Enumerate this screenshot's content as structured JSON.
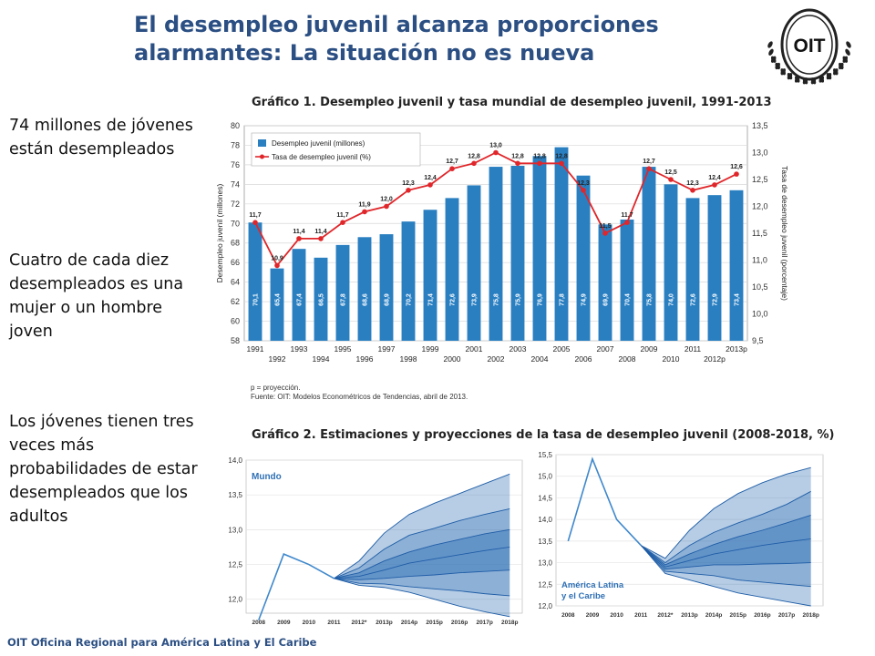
{
  "slide": {
    "title": "El desempleo juvenil alcanza proporciones alarmantes: La situación no es nueva",
    "logo_text": "OIT",
    "side_texts": [
      "74 millones de jóvenes están desempleados",
      "Cuatro de cada diez desempleados es una mujer o un hombre joven",
      "Los jóvenes tienen tres veces más probabilidades de estar desempleados que los adultos"
    ],
    "footer": "OIT Oficina Regional para América Latina y El Caribe",
    "colors": {
      "title": "#2b4f83",
      "bar": "#2a7fc1",
      "line": "#e0262a",
      "fan": "#2f70b5"
    }
  },
  "chart_data": [
    {
      "type": "bar",
      "title": "Gráfico 1. Desempleo juvenil y tasa mundial de desempleo juvenil, 1991-2013",
      "categories": [
        "1991",
        "1992",
        "1993",
        "1994",
        "1995",
        "1996",
        "1997",
        "1998",
        "1999",
        "2000",
        "2001",
        "2002",
        "2003",
        "2004",
        "2005",
        "2006",
        "2007",
        "2008",
        "2009",
        "2010",
        "2011",
        "2012p",
        "2013p"
      ],
      "x_labels_top": [
        "1991",
        "1993",
        "1995",
        "1997",
        "1999",
        "2001",
        "2003",
        "2005",
        "2007",
        "2009",
        "2011",
        "2013p"
      ],
      "x_labels_bottom": [
        "1992",
        "1994",
        "1996",
        "1998",
        "2000",
        "2002",
        "2004",
        "2006",
        "2008",
        "2010",
        "2012p"
      ],
      "series": [
        {
          "name": "Desempleo juvenil (millones)",
          "axis": "left",
          "values": [
            70.1,
            65.4,
            67.4,
            66.5,
            67.8,
            68.6,
            68.9,
            70.2,
            71.4,
            72.6,
            73.9,
            75.8,
            75.9,
            76.9,
            77.8,
            74.9,
            69.9,
            70.4,
            75.8,
            74.0,
            72.6,
            72.9,
            73.4
          ],
          "labels": [
            "70,1",
            "65,4",
            "67,4",
            "66,5",
            "67,8",
            "68,6",
            "68,9",
            "70,2",
            "71,4",
            "72,6",
            "73,9",
            "75,8",
            "75,9",
            "76,9",
            "77,8",
            "74,9",
            "69,9",
            "70,4",
            "75,8",
            "74,0",
            "72,6",
            "72,9",
            "73,4"
          ]
        },
        {
          "name": "Tasa de desempleo juvenil (%)",
          "axis": "right",
          "type": "line",
          "values": [
            11.7,
            10.9,
            11.4,
            11.4,
            11.7,
            11.9,
            12.0,
            12.3,
            12.4,
            12.7,
            12.8,
            13.0,
            12.8,
            12.8,
            12.8,
            12.3,
            11.5,
            11.7,
            12.7,
            12.5,
            12.3,
            12.4,
            12.6
          ],
          "labels": [
            "11,7",
            "10,9",
            "11,4",
            "11,4",
            "11,7",
            "11,9",
            "12,0",
            "12,3",
            "12,4",
            "12,7",
            "12,8",
            "13,0",
            "12,8",
            "12,8",
            "12,8",
            "12,3",
            "11,5",
            "11,7",
            "12,7",
            "12,5",
            "12,3",
            "12,4",
            "12,6"
          ]
        }
      ],
      "ylim": [
        58,
        80
      ],
      "y_ticks": [
        "58",
        "60",
        "62",
        "64",
        "66",
        "68",
        "70",
        "72",
        "74",
        "76",
        "78",
        "80"
      ],
      "y2lim": [
        9.5,
        13.5
      ],
      "y2_ticks": [
        "9,5",
        "10,0",
        "10,5",
        "11,0",
        "11,5",
        "12,0",
        "12,5",
        "13,0",
        "13,5"
      ],
      "ylabel": "Desempleo juvenil (millones)",
      "y2label": "Tasa de desempleo juvenil (porcentaje)",
      "legend": [
        "Desempleo juvenil (millones)",
        "Tasa de desempleo juvenil (%)"
      ],
      "legend_position": "top-left",
      "notes": [
        "p = proyección.",
        "Fuente: OIT: Modelos Econométricos de Tendencias, abril de 2013."
      ]
    },
    {
      "type": "area",
      "title": "Gráfico 2. Estimaciones y proyecciones de la tasa de desempleo juvenil (2008-2018, %)",
      "panel_label": "Mundo",
      "x": [
        "2008",
        "2009",
        "2010",
        "2011",
        "2012*",
        "2013p",
        "2014p",
        "2015p",
        "2016p",
        "2017p",
        "2018p"
      ],
      "history": [
        11.7,
        12.65,
        12.5,
        12.3
      ],
      "fan_x_index_start": 3,
      "fan_lines": [
        [
          12.3,
          12.2,
          12.17,
          12.1,
          12.0,
          11.9,
          11.82,
          11.75
        ],
        [
          12.3,
          12.23,
          12.22,
          12.18,
          12.15,
          12.12,
          12.08,
          12.05
        ],
        [
          12.3,
          12.28,
          12.3,
          12.33,
          12.35,
          12.38,
          12.4,
          12.42
        ],
        [
          12.3,
          12.33,
          12.42,
          12.52,
          12.58,
          12.64,
          12.7,
          12.75
        ],
        [
          12.3,
          12.38,
          12.55,
          12.68,
          12.78,
          12.86,
          12.94,
          13.0
        ],
        [
          12.3,
          12.45,
          12.72,
          12.92,
          13.02,
          13.13,
          13.22,
          13.3
        ],
        [
          12.3,
          12.55,
          12.95,
          13.22,
          13.38,
          13.52,
          13.66,
          13.8
        ]
      ],
      "ylim": [
        11.8,
        14.0
      ],
      "y_ticks": [
        "12,0",
        "12,5",
        "13,0",
        "13,5",
        "14,0"
      ]
    },
    {
      "type": "area",
      "panel_label": "América Latina y el Caribe",
      "x": [
        "2008",
        "2009",
        "2010",
        "2011",
        "2012*",
        "2013p",
        "2014p",
        "2015p",
        "2016p",
        "2017p",
        "2018p"
      ],
      "history": [
        13.5,
        15.4,
        14.0,
        13.4
      ],
      "fan_x_index_start": 3,
      "fan_lines": [
        [
          13.4,
          12.75,
          12.6,
          12.45,
          12.3,
          12.2,
          12.1,
          12.0
        ],
        [
          13.4,
          12.8,
          12.75,
          12.7,
          12.6,
          12.55,
          12.5,
          12.45
        ],
        [
          13.4,
          12.85,
          12.9,
          12.95,
          12.95,
          12.97,
          12.98,
          13.0
        ],
        [
          13.4,
          12.9,
          13.05,
          13.2,
          13.3,
          13.4,
          13.48,
          13.55
        ],
        [
          13.4,
          12.95,
          13.2,
          13.42,
          13.6,
          13.75,
          13.92,
          14.1
        ],
        [
          13.4,
          13.0,
          13.4,
          13.7,
          13.92,
          14.12,
          14.35,
          14.65
        ],
        [
          13.4,
          13.1,
          13.75,
          14.25,
          14.6,
          14.85,
          15.05,
          15.2
        ]
      ],
      "ylim": [
        12.0,
        15.5
      ],
      "y_ticks": [
        "12,0",
        "12,5",
        "13,0",
        "13,5",
        "14,0",
        "14,5",
        "15,0",
        "15,5"
      ]
    }
  ]
}
